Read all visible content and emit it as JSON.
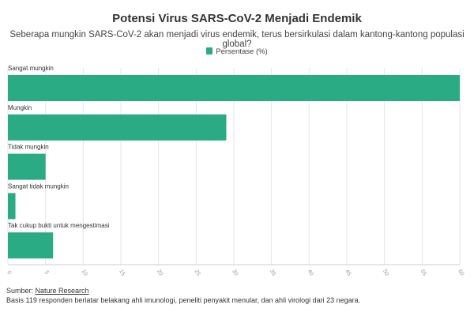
{
  "title": "Potensi Virus SARS-CoV-2 Menjadi Endemik",
  "subtitle": "Seberapa mungkin SARS-CoV-2 akan menjadi virus endemik, terus bersirkulasi dalam kantong-kantong populasi global?",
  "legend": {
    "label": "Persentase (%)"
  },
  "footer": {
    "source_prefix": "Sumber: ",
    "source_link": "Nature Research",
    "note": "Basis 119 responden berlatar belakang ahli imunologi, peneliti penyakit menular, dan ahli virologi dari 23 negara."
  },
  "colors": {
    "bar": "#2bab83",
    "grid": "#e6e6e6",
    "axis": "#cccccc",
    "tick": "#999999"
  },
  "chart_data": {
    "type": "bar",
    "orientation": "horizontal",
    "categories": [
      "Sangat mungkin",
      "Mungkin",
      "Tidak mungkin",
      "Sangat tidak mungkin",
      "Tak cukup bukti untuk mengestimasi"
    ],
    "series": [
      {
        "name": "Persentase (%)",
        "values": [
          60,
          29,
          5,
          1,
          6
        ]
      }
    ],
    "xlim": [
      0,
      60
    ],
    "xticks": [
      0,
      5,
      10,
      15,
      20,
      25,
      30,
      35,
      40,
      45,
      50,
      55,
      60
    ],
    "grid": true,
    "legend_position": "top-center"
  }
}
